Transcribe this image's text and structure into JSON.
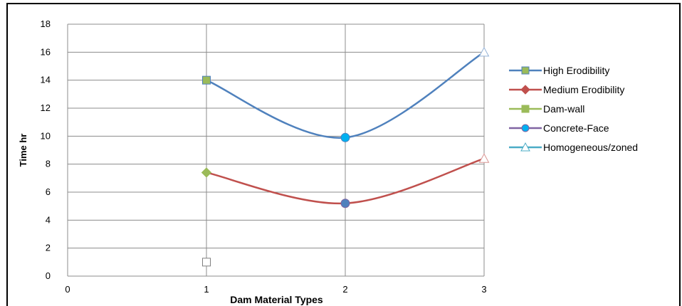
{
  "chart_data": {
    "type": "line",
    "title": "",
    "xlabel": "Dam Material Types",
    "ylabel": "Time hr",
    "xlim": [
      0,
      3
    ],
    "ylim": [
      0,
      18
    ],
    "x_ticks": [
      "0",
      "1",
      "2",
      "3"
    ],
    "y_ticks": [
      "0",
      "2",
      "4",
      "6",
      "8",
      "10",
      "12",
      "14",
      "16",
      "18"
    ],
    "grid": true,
    "legend_position": "right",
    "series": [
      {
        "name": "High Erodibility",
        "color": "#4f81bd",
        "marker": "square",
        "marker_color": "#9bbb59",
        "smooth": true,
        "x": [
          1,
          2,
          3
        ],
        "y": [
          14,
          9.9,
          16
        ]
      },
      {
        "name": "Medium Erodibility",
        "color": "#c0504d",
        "marker": "diamond",
        "marker_color": "#c0504d",
        "smooth": true,
        "x": [
          1,
          2,
          3
        ],
        "y": [
          7.4,
          5.2,
          8.4
        ]
      },
      {
        "name": "Dam-wall",
        "color": "#9bbb59",
        "marker": "square",
        "marker_color": "#9bbb59",
        "smooth": false,
        "x": [
          1
        ],
        "y": [
          1
        ]
      },
      {
        "name": "Concrete-Face",
        "color": "#8064a2",
        "marker": "circle",
        "marker_color": "#00b0f0",
        "smooth": false,
        "x": [
          2
        ],
        "y": [
          5.2
        ]
      },
      {
        "name": "Homogeneous/zoned",
        "color": "#4bacc6",
        "marker": "triangle",
        "marker_color": "#ffffff",
        "smooth": false,
        "x": [
          3
        ],
        "y": [
          16
        ]
      }
    ]
  }
}
